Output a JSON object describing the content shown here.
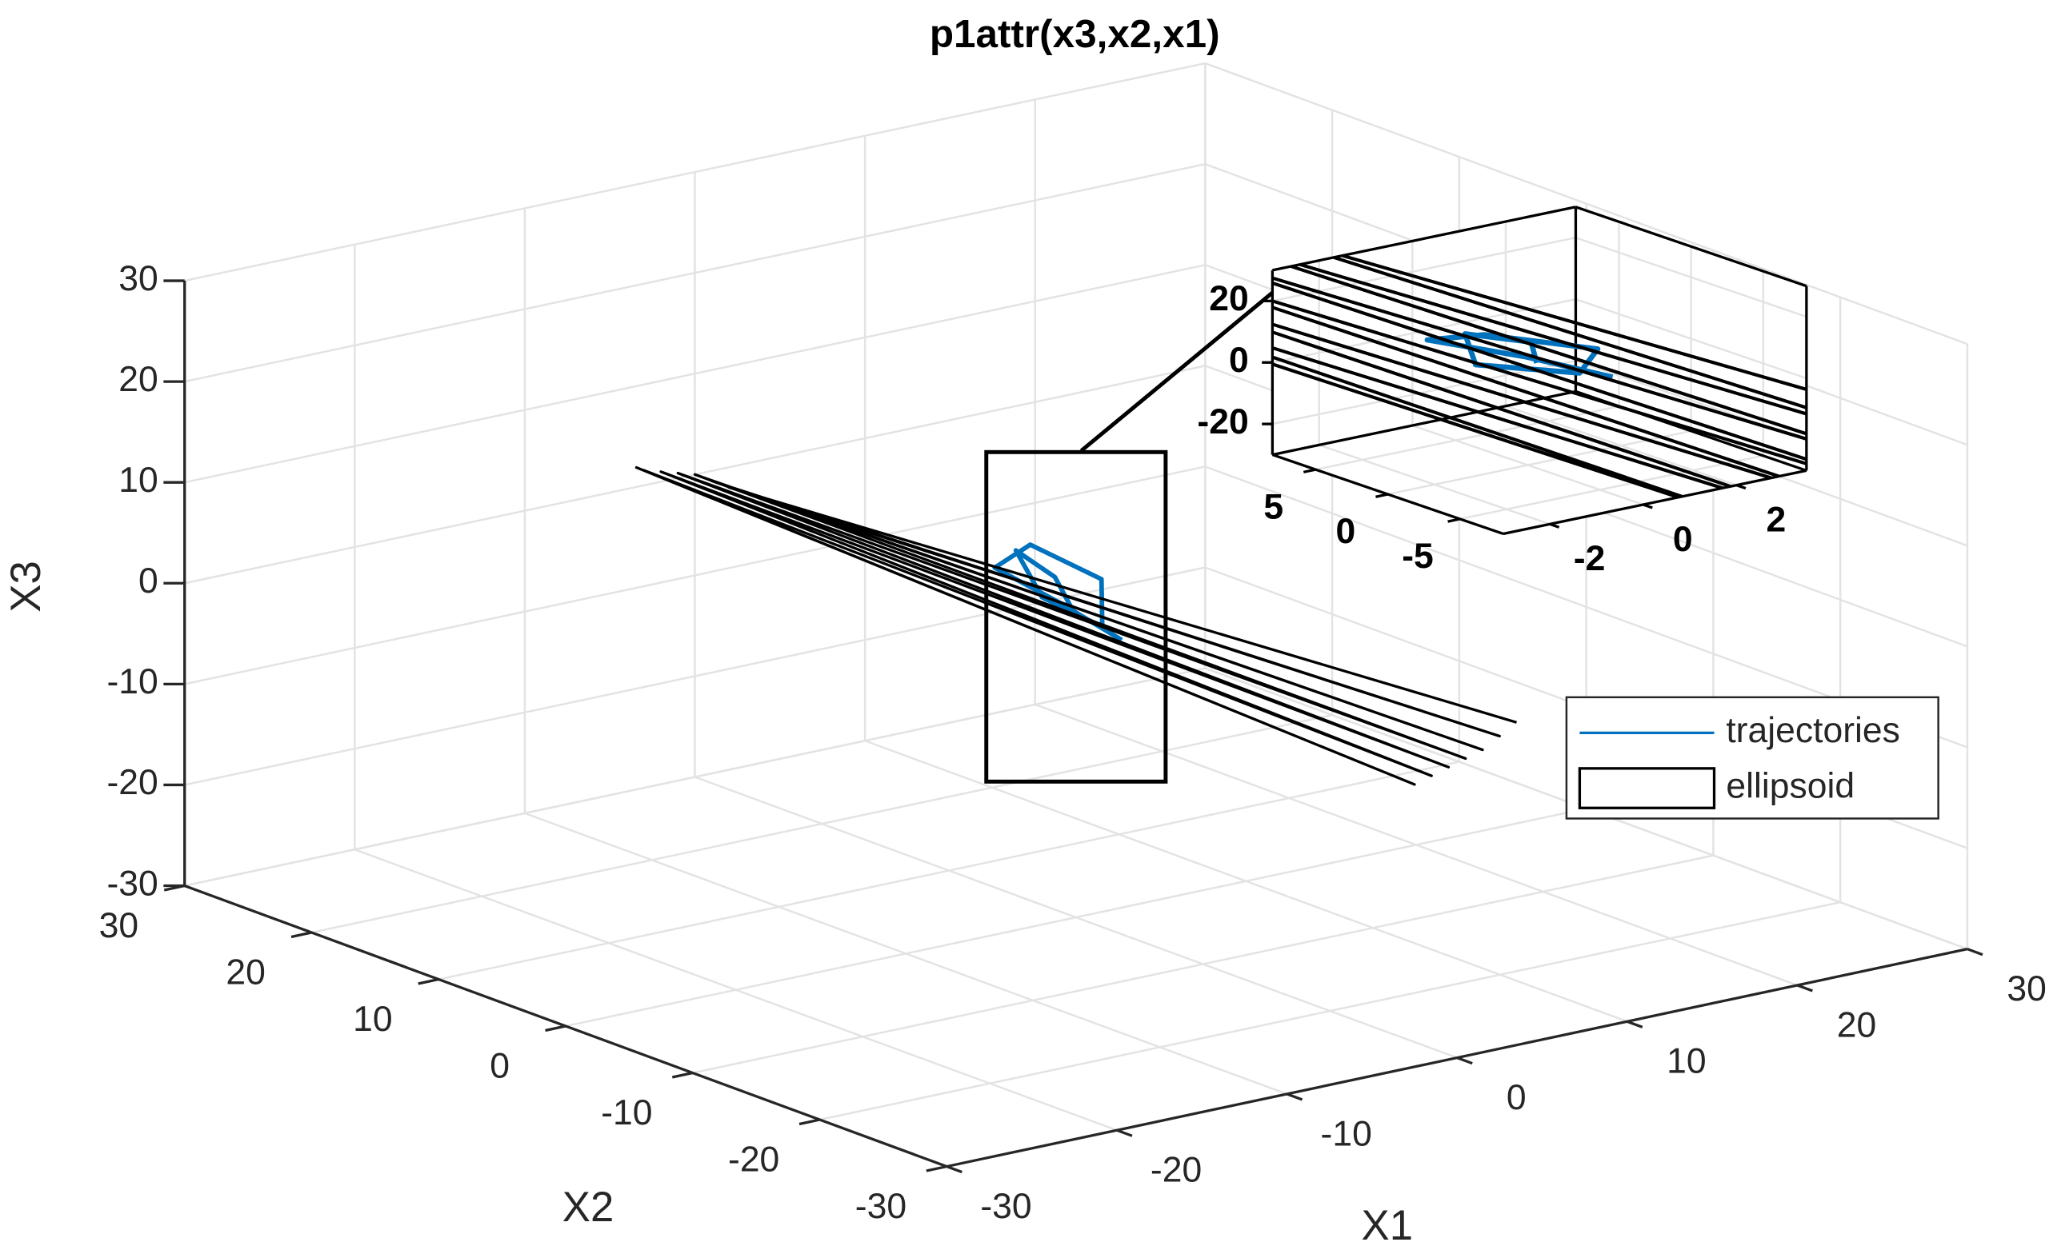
{
  "chart_data": {
    "type": "line3d",
    "title": "p1attr(x3,x2,x1)",
    "xlabel": "X1",
    "ylabel": "X2",
    "zlabel": "X3",
    "xlim": [
      -30,
      30
    ],
    "ylim": [
      -30,
      30
    ],
    "zlim": [
      -30,
      30
    ],
    "xticks": [
      -30,
      -20,
      -10,
      0,
      10,
      20,
      30
    ],
    "yticks": [
      -30,
      -20,
      -10,
      0,
      10,
      20,
      30
    ],
    "zticks": [
      -30,
      -20,
      -10,
      0,
      10,
      20,
      30
    ],
    "grid": true,
    "legend": "east",
    "series": [
      {
        "name": "trajectories",
        "color": "#0072bd",
        "x": [
          0.5,
          1,
          0.2,
          -0.5,
          0.8,
          1.5,
          0.3,
          -0.3,
          0.6,
          1.2
        ],
        "y": [
          1,
          3,
          5,
          2,
          -1,
          0,
          4,
          6,
          2,
          -2
        ],
        "z": [
          0,
          2,
          4,
          1,
          -1,
          3,
          5,
          2,
          0,
          -2
        ]
      },
      {
        "name": "ellipsoid",
        "color": "#000000",
        "x": [
          -3.5,
          -2.5,
          -3,
          -1.5,
          -2,
          -0.5,
          -1,
          0.5,
          0,
          1.5,
          1,
          2.5,
          2,
          3.5
        ],
        "y": [
          30,
          -30,
          30,
          -30,
          30,
          -30,
          30,
          -30,
          30,
          -30,
          30,
          -30,
          30,
          -30
        ],
        "z": [
          2,
          -2,
          1.5,
          -1.5,
          1,
          -1,
          0.5,
          -0.5,
          0,
          0,
          -1,
          1,
          -2,
          2
        ]
      }
    ],
    "inset": {
      "xlim": [
        -3,
        3.5
      ],
      "ylim": [
        -8,
        8
      ],
      "zlim": [
        -30,
        30
      ],
      "xticks": [
        -2,
        0,
        2
      ],
      "yticks": [
        -5,
        0,
        5
      ],
      "zticks": [
        -20,
        0,
        20
      ]
    }
  }
}
